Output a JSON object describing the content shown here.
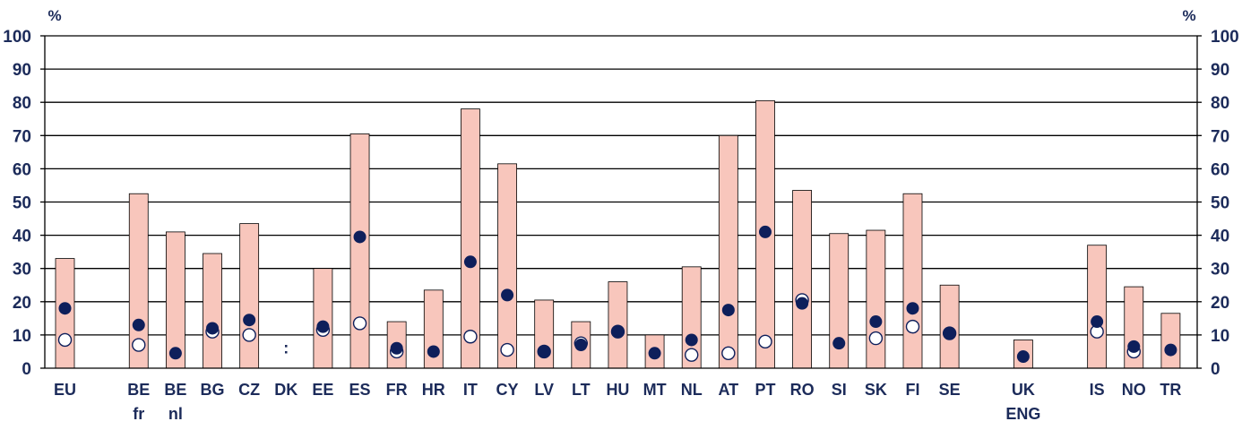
{
  "chart_data": {
    "type": "bar",
    "title": "",
    "xlabel": "",
    "ylabel": "%",
    "ylim": [
      0,
      100
    ],
    "yticks": [
      0,
      10,
      20,
      30,
      40,
      50,
      60,
      70,
      80,
      90,
      100
    ],
    "unit_left": "%",
    "unit_right": "%",
    "grid": true,
    "legend": "none",
    "na_marker": ":",
    "categories": [
      {
        "line1": "EU",
        "line2": ""
      },
      {
        "line1": "BE",
        "line2": "fr"
      },
      {
        "line1": "BE",
        "line2": "nl"
      },
      {
        "line1": "BG",
        "line2": ""
      },
      {
        "line1": "CZ",
        "line2": ""
      },
      {
        "line1": "DK",
        "line2": ""
      },
      {
        "line1": "EE",
        "line2": ""
      },
      {
        "line1": "ES",
        "line2": ""
      },
      {
        "line1": "FR",
        "line2": ""
      },
      {
        "line1": "HR",
        "line2": ""
      },
      {
        "line1": "IT",
        "line2": ""
      },
      {
        "line1": "CY",
        "line2": ""
      },
      {
        "line1": "LV",
        "line2": ""
      },
      {
        "line1": "LT",
        "line2": ""
      },
      {
        "line1": "HU",
        "line2": ""
      },
      {
        "line1": "MT",
        "line2": ""
      },
      {
        "line1": "NL",
        "line2": ""
      },
      {
        "line1": "AT",
        "line2": ""
      },
      {
        "line1": "PT",
        "line2": ""
      },
      {
        "line1": "RO",
        "line2": ""
      },
      {
        "line1": "SI",
        "line2": ""
      },
      {
        "line1": "SK",
        "line2": ""
      },
      {
        "line1": "FI",
        "line2": ""
      },
      {
        "line1": "SE",
        "line2": ""
      },
      {
        "line1": "UK",
        "line2": "ENG"
      },
      {
        "line1": "IS",
        "line2": ""
      },
      {
        "line1": "NO",
        "line2": ""
      },
      {
        "line1": "TR",
        "line2": ""
      }
    ],
    "group_after": [
      0,
      23,
      24
    ],
    "series": [
      {
        "kind": "bar",
        "color": "#f8c6bc",
        "values": [
          33,
          52.5,
          41,
          34.5,
          43.5,
          null,
          30,
          70.5,
          14,
          23.5,
          78,
          61.5,
          20.5,
          14,
          26,
          10,
          30.5,
          70,
          80.5,
          53.5,
          40.5,
          41.5,
          52.5,
          25,
          8.5,
          37,
          24.5,
          16.5
        ]
      },
      {
        "kind": "filled-marker",
        "color": "#0e1f5b",
        "values": [
          18,
          13,
          4.5,
          12,
          14.5,
          null,
          12.5,
          39.5,
          6,
          5,
          32,
          22,
          5,
          7,
          11,
          4.5,
          8.5,
          17.5,
          41,
          19.5,
          7.5,
          14,
          18,
          10.5,
          3.5,
          14,
          6.5,
          5.5
        ]
      },
      {
        "kind": "hollow-marker",
        "color": "#0e1f5b",
        "values": [
          8.5,
          7,
          null,
          11,
          10,
          null,
          11.5,
          13.5,
          5,
          null,
          9.5,
          5.5,
          5,
          7.5,
          11,
          null,
          4,
          4.5,
          8,
          20.5,
          null,
          9,
          12.5,
          10.5,
          null,
          11,
          5,
          null
        ]
      }
    ]
  }
}
